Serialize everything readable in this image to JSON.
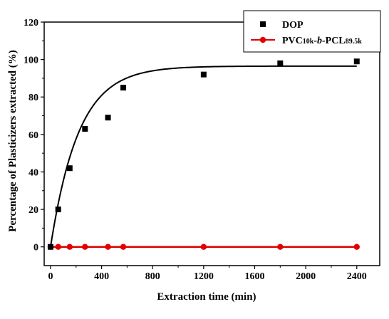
{
  "chart_data": {
    "type": "scatter",
    "title": "",
    "xlabel": "Extraction time (min)",
    "ylabel": "Percentage of Plasticizers extracted (%)",
    "xlim": [
      -50,
      2580
    ],
    "ylim": [
      -10,
      120
    ],
    "xticks": [
      0,
      400,
      800,
      1200,
      1600,
      2000,
      2400
    ],
    "yticks": [
      0,
      20,
      40,
      60,
      80,
      100,
      120
    ],
    "xtick_labels": [
      "0",
      "400",
      "800",
      "1200",
      "1600",
      "2000",
      "2400"
    ],
    "ytick_labels": [
      "0",
      "20",
      "40",
      "60",
      "80",
      "100",
      "120"
    ],
    "grid": false,
    "legend_position": "top-right",
    "series": [
      {
        "name": "DOP",
        "marker": "square",
        "color": "#000000",
        "x": [
          0,
          60,
          150,
          270,
          450,
          570,
          1200,
          1800,
          2400
        ],
        "y": [
          0,
          20,
          42,
          63,
          69,
          85,
          92,
          98,
          99
        ],
        "fit": {
          "plateau": 96.5,
          "rate": 0.00455
        }
      },
      {
        "name": "PVC10k-b-PCL89.5k",
        "name_parts": [
          {
            "text": "PVC",
            "sub": false
          },
          {
            "text": "10k",
            "sub": true
          },
          {
            "text": "-",
            "sub": false
          },
          {
            "text": "b",
            "sub": false,
            "italic": true
          },
          {
            "text": "-PCL",
            "sub": false
          },
          {
            "text": "89.5k",
            "sub": true
          }
        ],
        "marker": "circle",
        "color": "#e00000",
        "x": [
          0,
          60,
          150,
          270,
          450,
          570,
          1200,
          1800,
          2400
        ],
        "y": [
          0,
          0,
          0,
          0,
          0,
          0,
          0,
          0,
          0
        ],
        "fit_line": true
      }
    ]
  }
}
